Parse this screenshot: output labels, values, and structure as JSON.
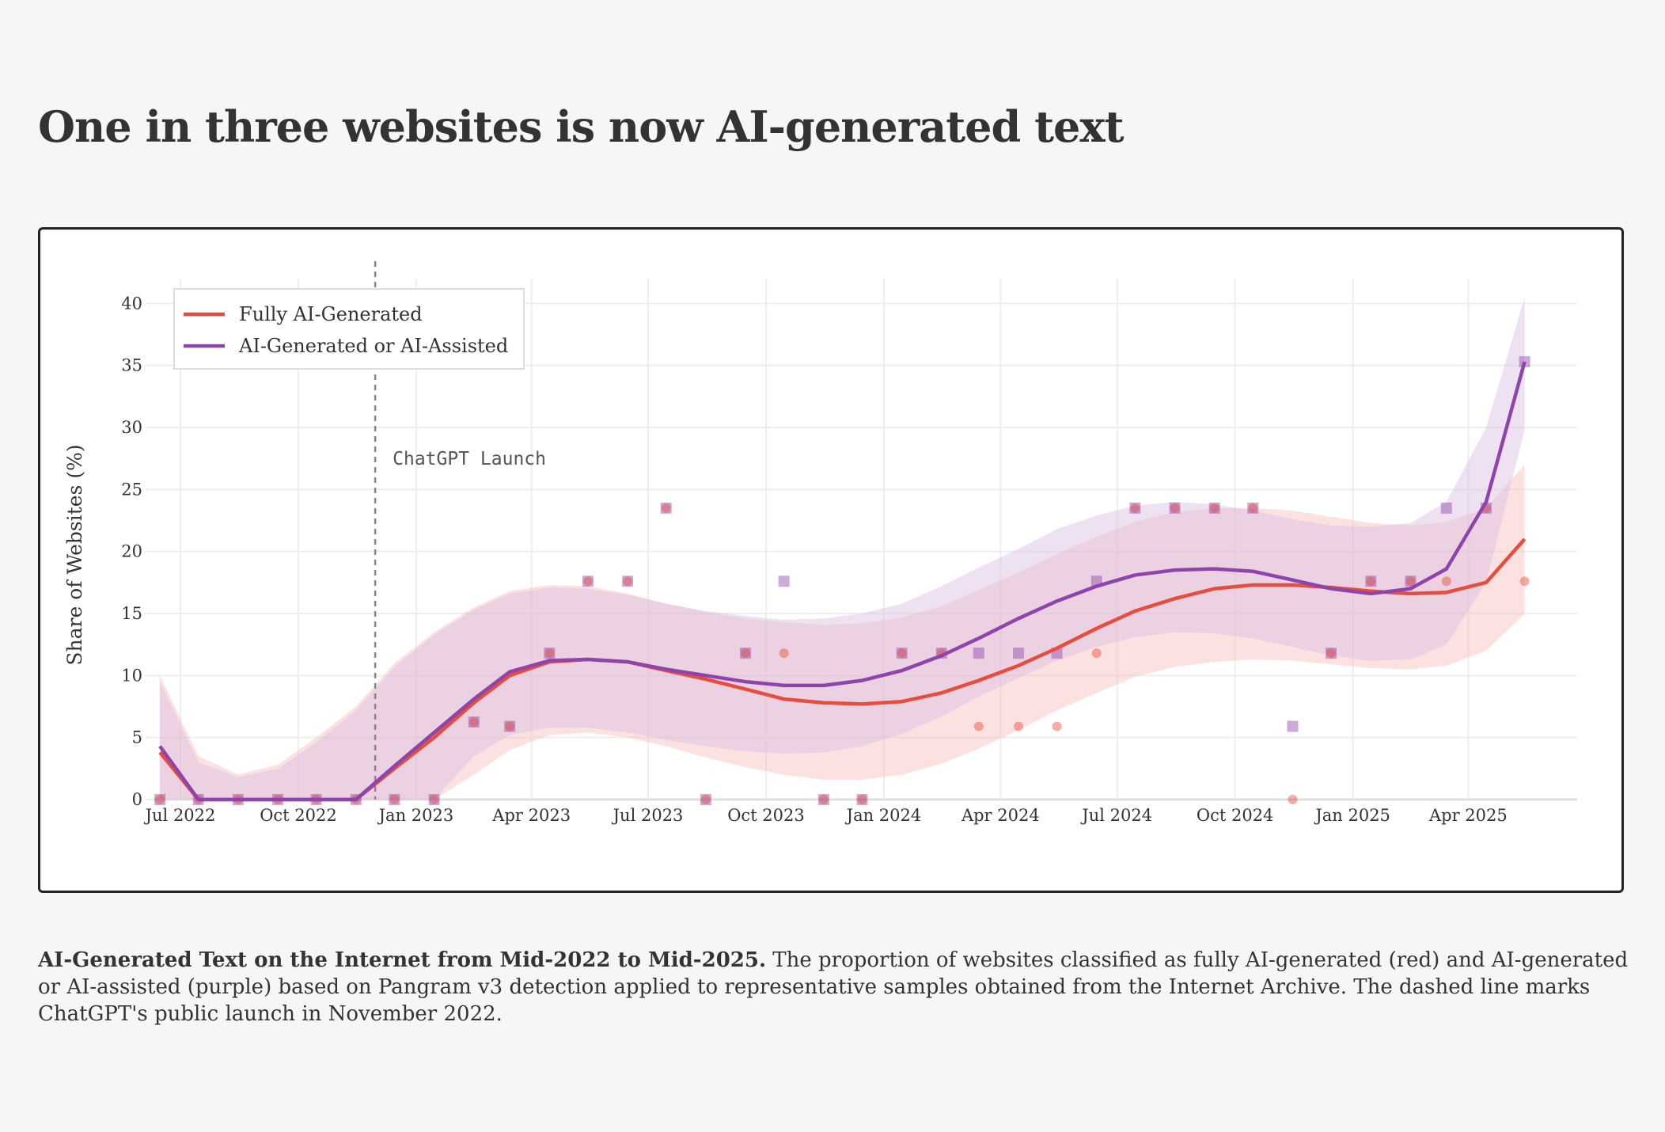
{
  "page": {
    "title": "One in three websites is now AI-generated text"
  },
  "caption": {
    "bold": "AI-Generated Text on the Internet from Mid-2022 to Mid-2025.",
    "text": " The proportion of websites classified as fully AI-generated (red) and AI-generated or AI-assisted (purple) based on Pangram v3 detection applied to representative samples obtained from the Internet Archive. The dashed line marks ChatGPT's public launch in November 2022."
  },
  "chart_data": {
    "type": "line",
    "title": "One in three websites is now AI-generated text",
    "xlabel": "",
    "ylabel": "Share of Websites (%)",
    "ylim": [
      0,
      42
    ],
    "yticks": [
      0,
      5,
      10,
      15,
      20,
      25,
      30,
      35,
      40
    ],
    "xlim": [
      "2022-06-10",
      "2025-06-25"
    ],
    "xticks": [
      {
        "date": "2022-07-01",
        "label": "Jul 2022"
      },
      {
        "date": "2022-10-01",
        "label": "Oct 2022"
      },
      {
        "date": "2023-01-01",
        "label": "Jan 2023"
      },
      {
        "date": "2023-04-01",
        "label": "Apr 2023"
      },
      {
        "date": "2023-07-01",
        "label": "Jul 2023"
      },
      {
        "date": "2023-10-01",
        "label": "Oct 2023"
      },
      {
        "date": "2024-01-01",
        "label": "Jan 2024"
      },
      {
        "date": "2024-04-01",
        "label": "Apr 2024"
      },
      {
        "date": "2024-07-01",
        "label": "Jul 2024"
      },
      {
        "date": "2024-10-01",
        "label": "Oct 2024"
      },
      {
        "date": "2025-01-01",
        "label": "Jan 2025"
      },
      {
        "date": "2025-04-01",
        "label": "Apr 2025"
      }
    ],
    "grid": true,
    "legend": {
      "placement": "top-left"
    },
    "annotations": [
      {
        "type": "vline",
        "date": "2022-11-30",
        "style": "dashed",
        "label": "ChatGPT Launch",
        "label_y": 27.5
      }
    ],
    "x": [
      "2022-06-15",
      "2022-07-15",
      "2022-08-15",
      "2022-09-15",
      "2022-10-15",
      "2022-11-15",
      "2022-12-15",
      "2023-01-15",
      "2023-02-15",
      "2023-03-15",
      "2023-04-15",
      "2023-05-15",
      "2023-06-15",
      "2023-07-15",
      "2023-08-15",
      "2023-09-15",
      "2023-10-15",
      "2023-11-15",
      "2023-12-15",
      "2024-01-15",
      "2024-02-15",
      "2024-03-15",
      "2024-04-15",
      "2024-05-15",
      "2024-06-15",
      "2024-07-15",
      "2024-08-15",
      "2024-09-15",
      "2024-10-15",
      "2024-11-15",
      "2024-12-15",
      "2025-01-15",
      "2025-02-15",
      "2025-03-15",
      "2025-04-15",
      "2025-05-15"
    ],
    "series": [
      {
        "name": "Fully AI-Generated",
        "color": "#e74c3c",
        "band_color": "#f5b7b1",
        "marker": "circle",
        "points": [
          0,
          0,
          0,
          0,
          0,
          0,
          0,
          0,
          6.25,
          5.9,
          11.8,
          17.6,
          17.6,
          23.5,
          0,
          11.8,
          11.8,
          0,
          0,
          11.8,
          11.8,
          5.9,
          5.9,
          5.9,
          11.8,
          23.5,
          23.5,
          23.5,
          23.5,
          0,
          11.8,
          17.6,
          17.6,
          17.6,
          23.5,
          17.6
        ],
        "trend": [
          3.8,
          0,
          0,
          0,
          0,
          0,
          2.5,
          5.0,
          7.8,
          10.0,
          11.1,
          11.3,
          11.1,
          10.4,
          9.7,
          8.9,
          8.1,
          7.8,
          7.7,
          7.9,
          8.6,
          9.6,
          10.8,
          12.2,
          13.8,
          15.2,
          16.2,
          17.0,
          17.3,
          17.3,
          17.1,
          16.8,
          16.6,
          16.7,
          17.5,
          21.0
        ],
        "band_lower": [
          0,
          0,
          0,
          0,
          0,
          0,
          0,
          0,
          2.0,
          4.0,
          5.2,
          5.4,
          5.0,
          4.3,
          3.4,
          2.6,
          2.0,
          1.6,
          1.6,
          2.0,
          2.9,
          4.1,
          5.6,
          7.2,
          8.6,
          9.9,
          10.7,
          11.1,
          11.3,
          11.2,
          10.9,
          10.6,
          10.5,
          10.8,
          12.0,
          15.0
        ],
        "band_upper": [
          10.0,
          3.5,
          2.0,
          2.8,
          5.0,
          7.5,
          11.0,
          13.5,
          15.5,
          16.8,
          17.3,
          17.2,
          16.6,
          15.8,
          15.1,
          14.6,
          14.3,
          14.1,
          14.2,
          14.7,
          15.6,
          16.9,
          18.3,
          19.8,
          21.2,
          22.4,
          23.2,
          23.5,
          23.5,
          23.3,
          22.8,
          22.3,
          22.1,
          22.4,
          23.5,
          27.0
        ]
      },
      {
        "name": "AI-Generated or AI-Assisted",
        "color": "#8e44ad",
        "band_color": "#d7bde2",
        "marker": "square",
        "points": [
          0,
          0,
          0,
          0,
          0,
          0,
          0,
          0,
          6.25,
          5.9,
          11.8,
          17.6,
          17.6,
          23.5,
          0,
          11.8,
          17.6,
          0,
          0,
          11.8,
          11.8,
          11.8,
          11.8,
          11.8,
          17.6,
          23.5,
          23.5,
          23.5,
          23.5,
          5.9,
          11.8,
          17.6,
          17.6,
          23.5,
          23.5,
          35.3
        ],
        "trend": [
          4.3,
          0,
          0,
          0,
          0,
          0,
          2.7,
          5.4,
          8.1,
          10.3,
          11.2,
          11.3,
          11.1,
          10.5,
          10.0,
          9.5,
          9.2,
          9.2,
          9.6,
          10.4,
          11.6,
          13.0,
          14.6,
          16.0,
          17.2,
          18.1,
          18.5,
          18.6,
          18.4,
          17.7,
          17.0,
          16.6,
          17.0,
          18.6,
          24.0,
          35.3
        ],
        "band_lower": [
          0,
          0,
          0,
          0,
          0,
          0,
          0,
          0,
          3.5,
          5.2,
          5.8,
          5.8,
          5.4,
          4.8,
          4.3,
          3.9,
          3.7,
          3.8,
          4.3,
          5.3,
          6.7,
          8.3,
          9.8,
          11.2,
          12.3,
          13.1,
          13.5,
          13.4,
          13.0,
          12.3,
          11.6,
          11.2,
          11.3,
          12.5,
          17.5,
          29.8
        ],
        "band_upper": [
          9.5,
          3.0,
          1.8,
          2.5,
          4.6,
          7.2,
          10.7,
          13.3,
          15.3,
          16.6,
          17.1,
          17.0,
          16.5,
          15.8,
          15.2,
          14.8,
          14.5,
          14.6,
          15.0,
          15.8,
          17.2,
          18.7,
          20.2,
          21.8,
          22.9,
          23.7,
          24.0,
          23.8,
          23.3,
          22.6,
          22.1,
          22.0,
          22.3,
          24.0,
          30.0,
          40.5
        ]
      }
    ]
  }
}
